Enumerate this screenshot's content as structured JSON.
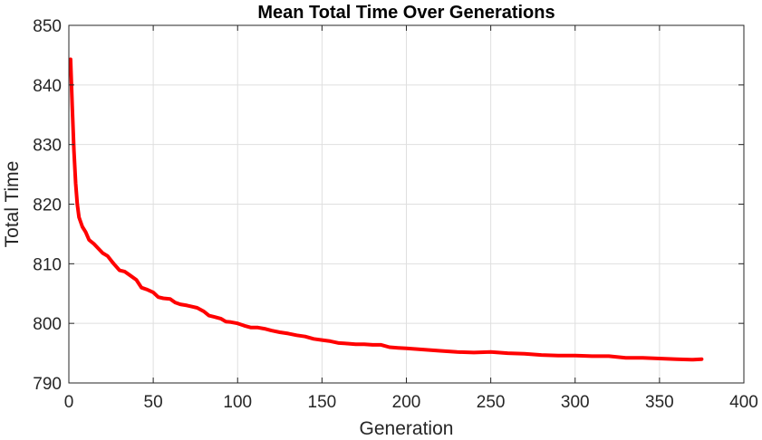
{
  "chart_data": {
    "type": "line",
    "title": "Mean Total Time Over Generations",
    "xlabel": "Generation",
    "ylabel": "Total Time",
    "xlim": [
      0,
      400
    ],
    "ylim": [
      790,
      850
    ],
    "xticks": [
      "0",
      "50",
      "100",
      "150",
      "200",
      "250",
      "300",
      "350",
      "400"
    ],
    "yticks": [
      "790",
      "800",
      "810",
      "820",
      "830",
      "840",
      "850"
    ],
    "grid": true,
    "series": [
      {
        "color": "#ff0000",
        "x": [
          1,
          2,
          3,
          4,
          5,
          6,
          8,
          10,
          12,
          15,
          18,
          20,
          23,
          26,
          30,
          33,
          36,
          40,
          43,
          46,
          50,
          53,
          56,
          60,
          63,
          66,
          70,
          73,
          76,
          80,
          83,
          86,
          90,
          93,
          96,
          100,
          104,
          108,
          112,
          116,
          120,
          125,
          130,
          135,
          140,
          145,
          150,
          155,
          160,
          165,
          170,
          175,
          180,
          185,
          190,
          195,
          200,
          210,
          220,
          230,
          240,
          250,
          260,
          270,
          280,
          290,
          300,
          310,
          320,
          330,
          340,
          350,
          360,
          370,
          375
        ],
        "y": [
          844.3,
          836.5,
          829.0,
          823.5,
          820.0,
          817.8,
          816.2,
          815.3,
          814.0,
          813.3,
          812.4,
          811.8,
          811.3,
          810.2,
          808.9,
          808.7,
          808.1,
          807.3,
          806.0,
          805.7,
          805.2,
          804.4,
          804.2,
          804.1,
          803.5,
          803.2,
          803.0,
          802.8,
          802.6,
          802.0,
          801.3,
          801.1,
          800.8,
          800.3,
          800.2,
          800.0,
          799.6,
          799.3,
          799.3,
          799.1,
          798.8,
          798.5,
          798.3,
          798.0,
          797.8,
          797.4,
          797.2,
          797.0,
          796.7,
          796.6,
          796.5,
          796.5,
          796.4,
          796.4,
          796.0,
          795.9,
          795.8,
          795.6,
          795.4,
          795.2,
          795.1,
          795.2,
          795.0,
          794.9,
          794.7,
          794.6,
          794.6,
          794.5,
          794.5,
          794.2,
          794.2,
          794.1,
          794.0,
          793.9,
          794.0
        ]
      }
    ]
  }
}
